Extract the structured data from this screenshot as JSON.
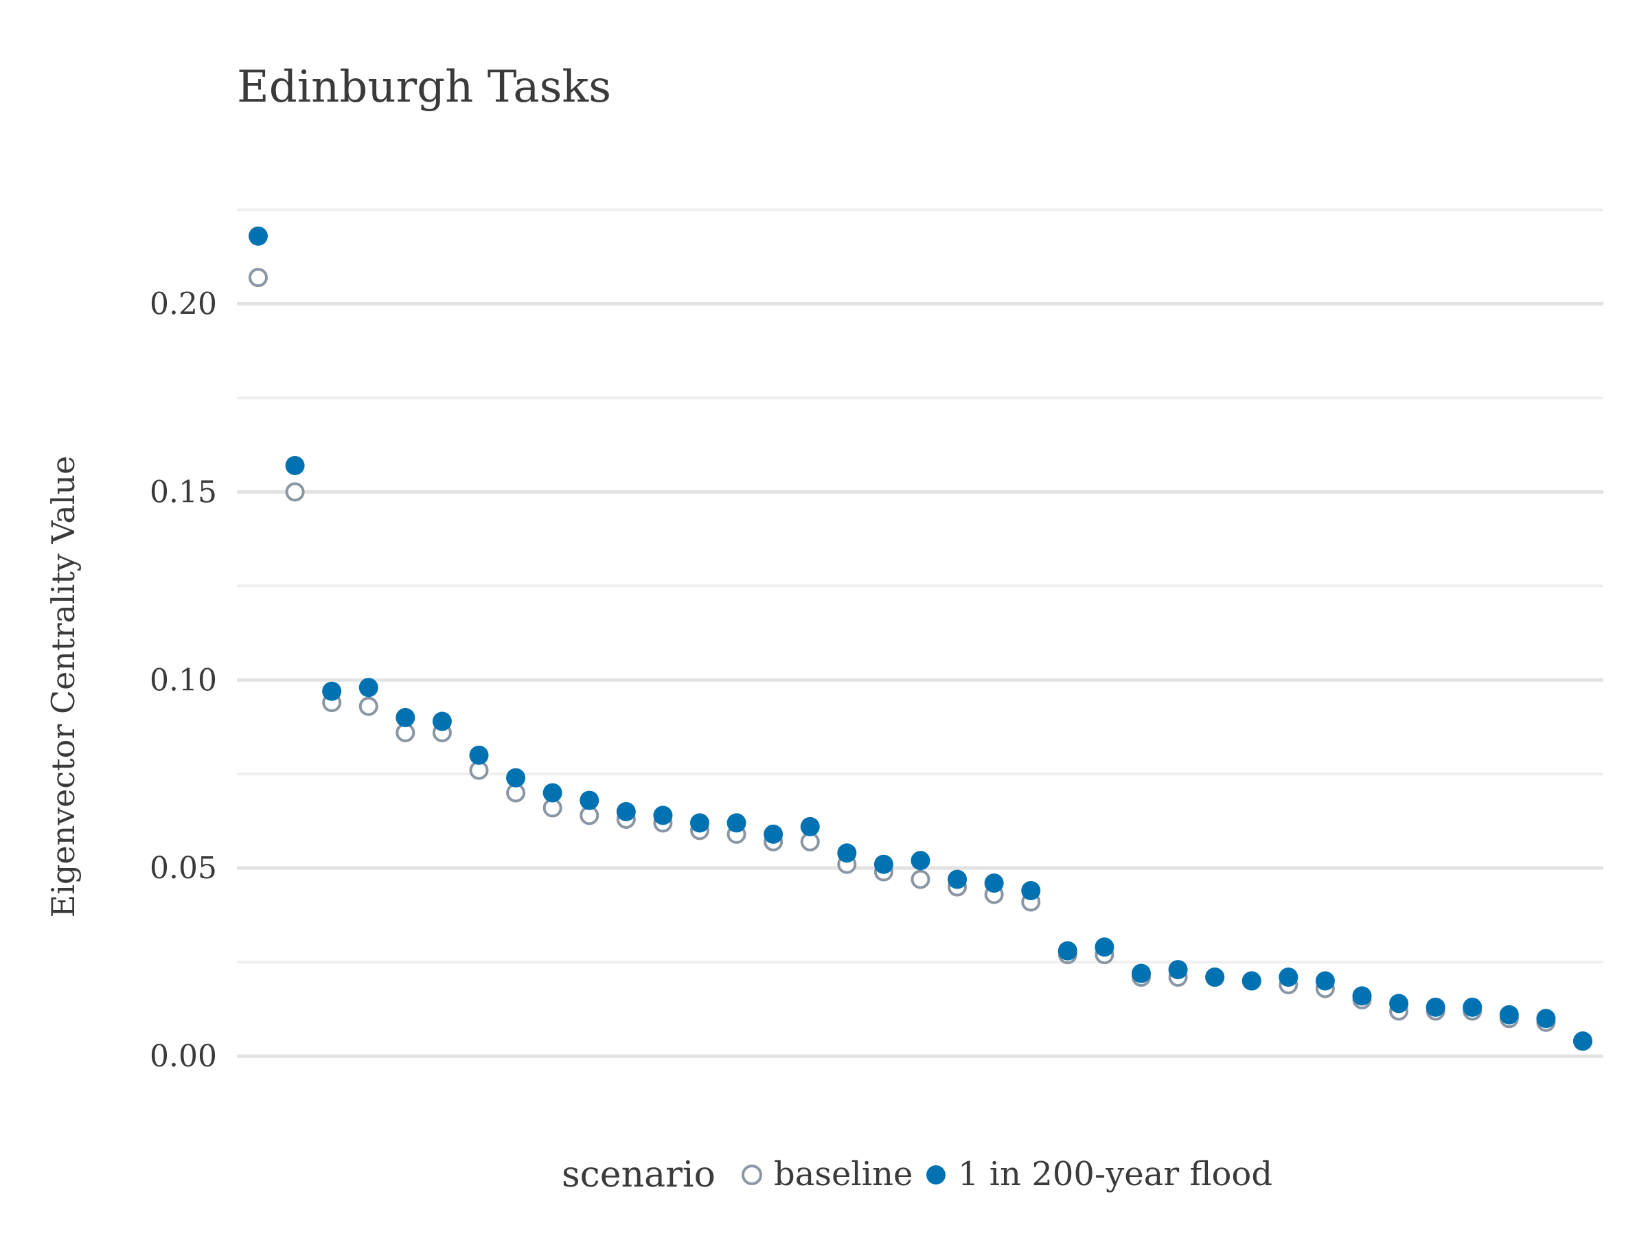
{
  "chart_data": {
    "type": "scatter",
    "title": "Edinburgh Tasks",
    "xlabel": "",
    "ylabel": "Eigenvector Centrality Value",
    "ylim": [
      -0.004,
      0.226
    ],
    "yticks": [
      "0.00",
      "0.05",
      "0.10",
      "0.15",
      "0.20"
    ],
    "ytick_values": [
      0.0,
      0.05,
      0.1,
      0.15,
      0.2
    ],
    "yminor_values": [
      0.025,
      0.075,
      0.125,
      0.175,
      0.225
    ],
    "grid": true,
    "legend": {
      "title": "scenario",
      "placement": "bottom",
      "entries": [
        "baseline",
        "1 in 200-year flood"
      ]
    },
    "x": [
      1,
      2,
      3,
      4,
      5,
      6,
      7,
      8,
      9,
      10,
      11,
      12,
      13,
      14,
      15,
      16,
      17,
      18,
      19,
      20,
      21,
      22,
      23,
      24,
      25,
      26,
      27,
      28,
      29,
      30,
      31,
      32,
      33,
      34,
      35,
      36,
      37
    ],
    "series": [
      {
        "name": "baseline",
        "marker": "open-circle",
        "color": "#8a96a3",
        "values": [
          0.207,
          0.15,
          0.094,
          0.093,
          0.086,
          0.086,
          0.076,
          0.07,
          0.066,
          0.064,
          0.063,
          0.062,
          0.06,
          0.059,
          0.057,
          0.057,
          0.051,
          0.049,
          0.047,
          0.045,
          0.043,
          0.041,
          0.027,
          0.027,
          0.021,
          0.021,
          0.021,
          0.02,
          0.019,
          0.018,
          0.015,
          0.012,
          0.012,
          0.012,
          0.01,
          0.009,
          0.004
        ]
      },
      {
        "name": "1 in 200-year flood",
        "marker": "filled-circle",
        "color": "#0072b2",
        "values": [
          0.218,
          0.157,
          0.097,
          0.098,
          0.09,
          0.089,
          0.08,
          0.074,
          0.07,
          0.068,
          0.065,
          0.064,
          0.062,
          0.062,
          0.059,
          0.061,
          0.054,
          0.051,
          0.052,
          0.047,
          0.046,
          0.044,
          0.028,
          0.029,
          0.022,
          0.023,
          0.021,
          0.02,
          0.021,
          0.02,
          0.016,
          0.014,
          0.013,
          0.013,
          0.011,
          0.01,
          0.004
        ]
      }
    ]
  }
}
